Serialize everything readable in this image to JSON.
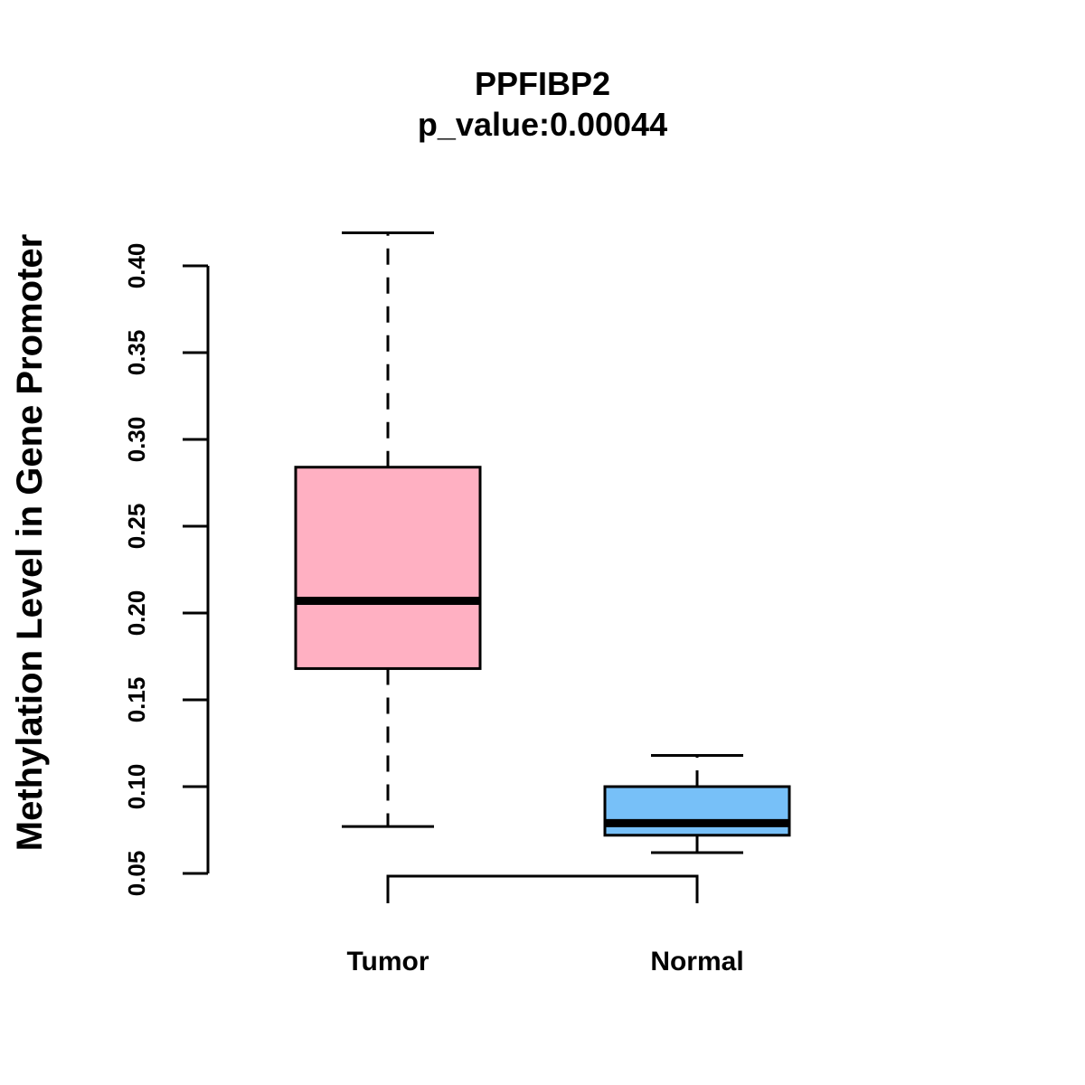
{
  "chart_data": {
    "type": "boxplot",
    "title": "PPFIBP2",
    "subtitle": "p_value:0.00044",
    "ylabel": "Methylation Level in Gene Promoter",
    "xlabel": "",
    "ylim": [
      0.05,
      0.4
    ],
    "yticks": [
      "0.05",
      "0.10",
      "0.15",
      "0.20",
      "0.25",
      "0.30",
      "0.35",
      "0.40"
    ],
    "categories": [
      "Tumor",
      "Normal"
    ],
    "boxes": [
      {
        "name": "Tumor",
        "min": 0.077,
        "q1": 0.168,
        "median": 0.207,
        "q3": 0.284,
        "max": 0.419,
        "color": "#FFB0C2"
      },
      {
        "name": "Normal",
        "min": 0.062,
        "q1": 0.072,
        "median": 0.079,
        "q3": 0.1,
        "max": 0.118,
        "color": "#77C0F8"
      }
    ],
    "comparison_bracket": {
      "from": "Tumor",
      "to": "Normal"
    }
  }
}
